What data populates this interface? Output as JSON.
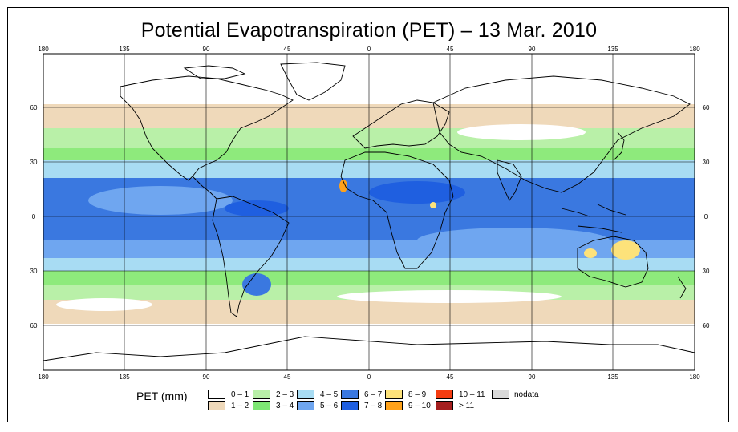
{
  "title": "Potential Evapotranspiration (PET) – 13 Mar. 2010",
  "map": {
    "lon_ticks": [
      "180",
      "135",
      "90",
      "45",
      "0",
      "45",
      "90",
      "135",
      "180"
    ],
    "lat_ticks": [
      "60",
      "30",
      "0",
      "30",
      "60"
    ],
    "colors": {
      "ocean_deep": "#3a78e0",
      "ocean_mid": "#6fa6f0",
      "ocean_light": "#a8dcf3",
      "green_light": "#8eea7c",
      "green_pale": "#b9f0a8",
      "tan": "#efd9ba",
      "land_outline": "#000000"
    }
  },
  "legend": {
    "title": "PET (mm)",
    "items": [
      {
        "label": "0 – 1",
        "color": "#ffffff"
      },
      {
        "label": "1 – 2",
        "color": "#efd9ba"
      },
      {
        "label": "2 – 3",
        "color": "#b9f0a8"
      },
      {
        "label": "3 – 4",
        "color": "#7ee774"
      },
      {
        "label": "4 – 5",
        "color": "#a8dcf3"
      },
      {
        "label": "5 – 6",
        "color": "#6fa6f0"
      },
      {
        "label": "6 – 7",
        "color": "#3a78e0"
      },
      {
        "label": "7 – 8",
        "color": "#1f5fe0"
      },
      {
        "label": "8 – 9",
        "color": "#fde27a"
      },
      {
        "label": "9 – 10",
        "color": "#ffa21a"
      },
      {
        "label": "10 – 11",
        "color": "#f53c10"
      },
      {
        "label": "> 11",
        "color": "#a41e1e"
      },
      {
        "label": "nodata",
        "color": "#d9d9d9"
      }
    ]
  }
}
